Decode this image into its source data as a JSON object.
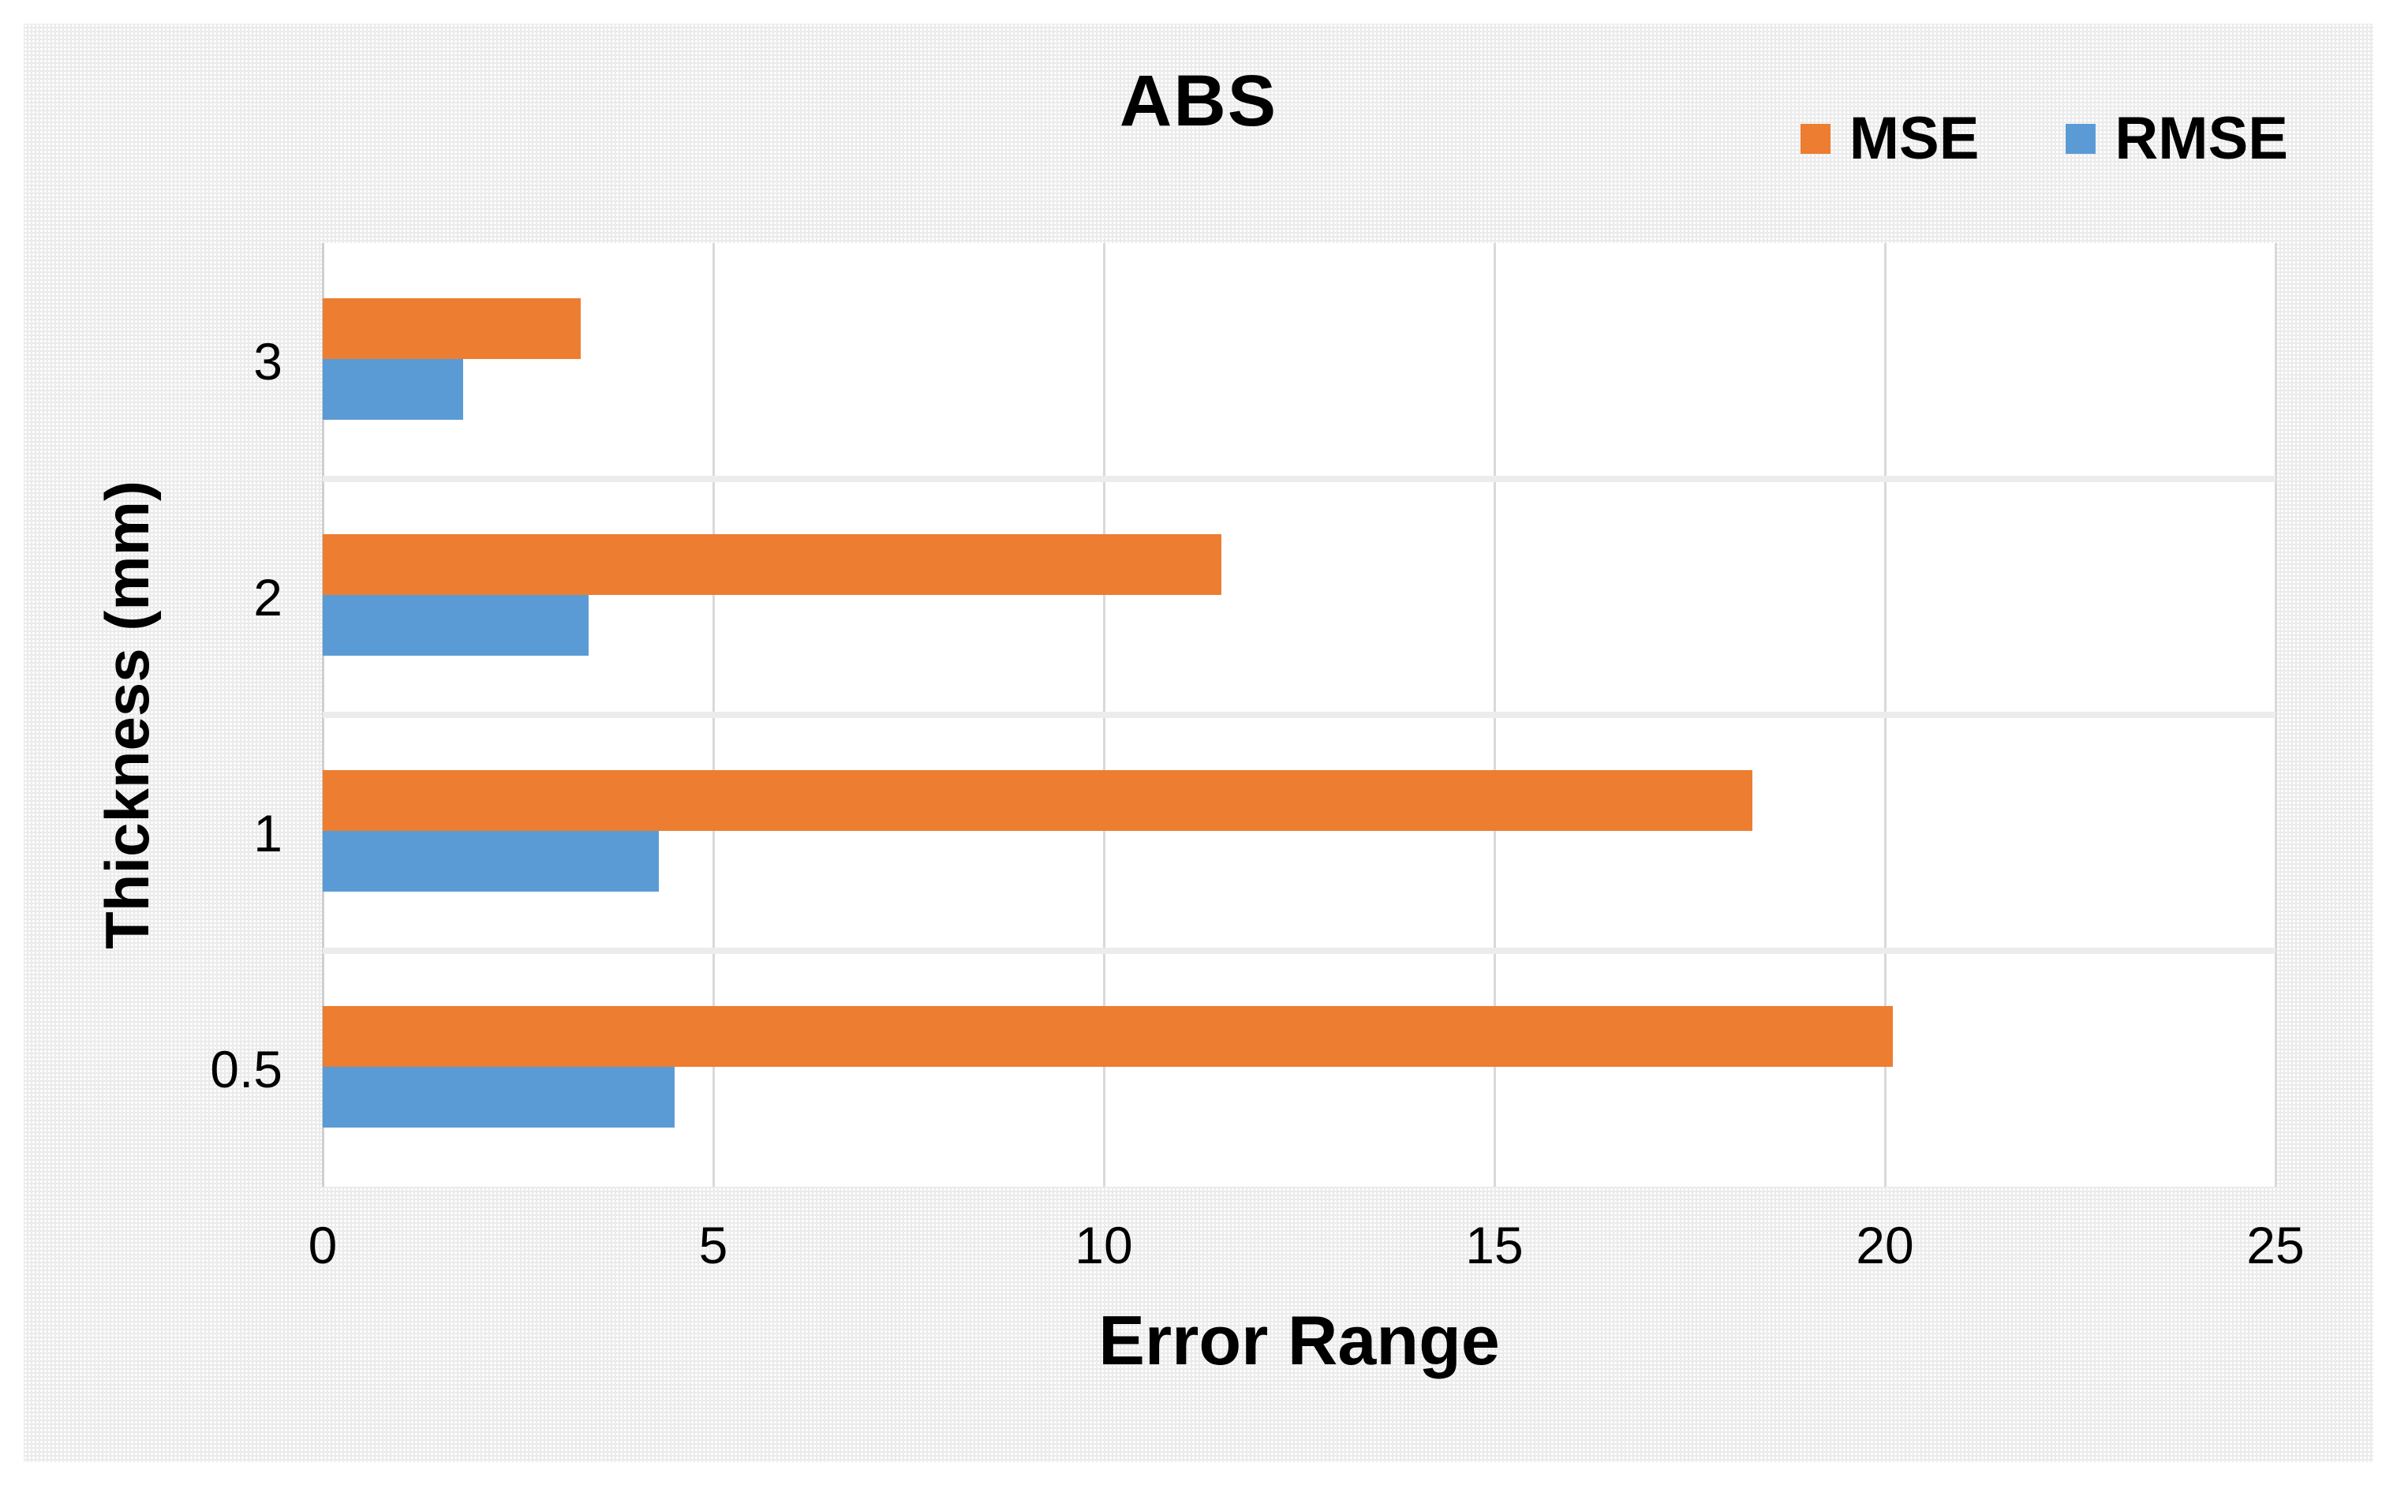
{
  "figure": {
    "title": "ABS",
    "background": "#ebebeb",
    "plot_background": "#ffffff",
    "gridline_color": "#d9d9d9"
  },
  "legend": {
    "items": [
      {
        "label": "MSE",
        "color": "#ED7D31"
      },
      {
        "label": "RMSE",
        "color": "#5B9BD5"
      }
    ]
  },
  "chart_data": {
    "type": "bar",
    "orientation": "horizontal",
    "title": "ABS",
    "xlabel": "Error Range",
    "ylabel": "Thickness (mm)",
    "categories": [
      "3",
      "2",
      "1",
      "0.5"
    ],
    "series": [
      {
        "name": "MSE",
        "color": "#ED7D31",
        "values": [
          3.3,
          11.5,
          18.3,
          20.1
        ]
      },
      {
        "name": "RMSE",
        "color": "#5B9BD5",
        "values": [
          1.8,
          3.4,
          4.3,
          4.5
        ]
      }
    ],
    "xlim": [
      0,
      25
    ],
    "xticks": [
      0,
      5,
      10,
      15,
      20,
      25
    ],
    "grid": true,
    "legend_position": "top-right",
    "note_category_order": "top-to-bottom as displayed"
  }
}
